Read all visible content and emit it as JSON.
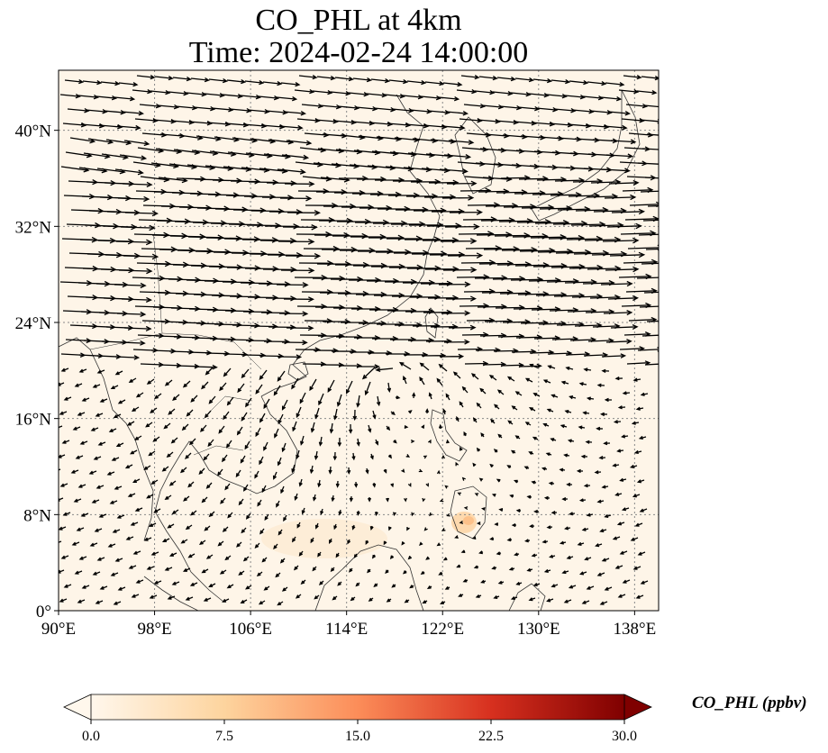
{
  "title": {
    "line1": "CO_PHL at 4km",
    "line2": "Time: 2024-02-24 14:00:00"
  },
  "map": {
    "extent": {
      "lon": [
        90,
        140
      ],
      "lat": [
        0,
        45
      ]
    },
    "background_color": "#fef5e8",
    "lat_ticks": [
      {
        "value": 40,
        "label": "40°N"
      },
      {
        "value": 32,
        "label": "32°N"
      },
      {
        "value": 24,
        "label": "24°N"
      },
      {
        "value": 16,
        "label": "16°N"
      },
      {
        "value": 8,
        "label": "8°N"
      },
      {
        "value": 0,
        "label": "0°"
      }
    ],
    "lon_ticks": [
      {
        "value": 90,
        "label": "90°E"
      },
      {
        "value": 98,
        "label": "98°E"
      },
      {
        "value": 106,
        "label": "106°E"
      },
      {
        "value": 114,
        "label": "114°E"
      },
      {
        "value": 122,
        "label": "122°E"
      },
      {
        "value": 130,
        "label": "130°E"
      },
      {
        "value": 138,
        "label": "138°E"
      }
    ],
    "gridlines": "dotted",
    "wind_vectors": "black quiver arrows"
  },
  "colorbar": {
    "label": "CO_PHL (ppbv)",
    "colormap": "OrRd",
    "range": [
      0,
      30
    ],
    "ticks": [
      "0.0",
      "7.5",
      "15.0",
      "22.5",
      "30.0"
    ],
    "tick_values": [
      0,
      7.5,
      15,
      22.5,
      30
    ],
    "extend": "both"
  }
}
